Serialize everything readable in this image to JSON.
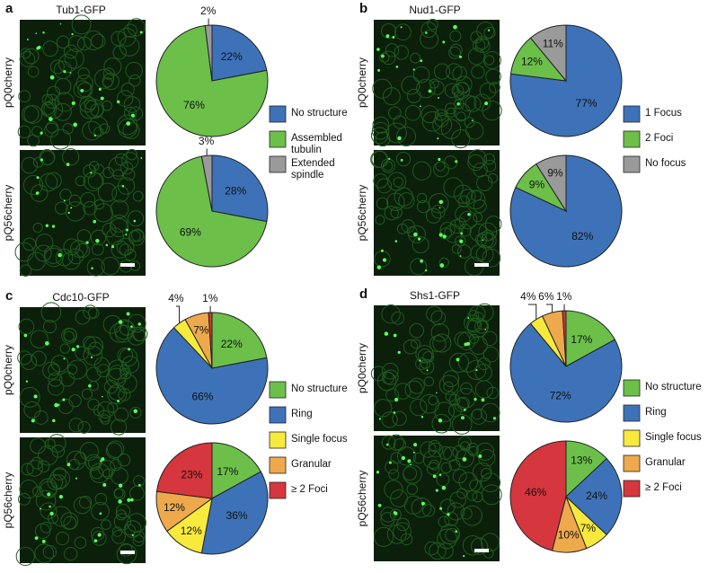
{
  "chart_data": [
    {
      "type": "pie",
      "panel": "a",
      "title": "Tub1-GFP",
      "categories": [
        "No structure",
        "Assembled tubulin",
        "Extended spindle"
      ],
      "colors": [
        "#3d72b8",
        "#6cc04a",
        "#9a9a9a"
      ],
      "series": [
        {
          "name": "pQ0cherry",
          "values": [
            22,
            76,
            2
          ],
          "value_labels": [
            "22%",
            "76%",
            "2%"
          ]
        },
        {
          "name": "pQ56cherry",
          "values": [
            28,
            69,
            3
          ],
          "value_labels": [
            "28%",
            "69%",
            "3%"
          ]
        }
      ]
    },
    {
      "type": "pie",
      "panel": "b",
      "title": "Nud1-GFP",
      "categories": [
        "1 Focus",
        "2 Foci",
        "No focus"
      ],
      "colors": [
        "#3d72b8",
        "#6cc04a",
        "#9a9a9a"
      ],
      "series": [
        {
          "name": "pQ0cherry",
          "values": [
            77,
            12,
            11
          ],
          "value_labels": [
            "77%",
            "12%",
            "11%"
          ]
        },
        {
          "name": "pQ56cherry",
          "values": [
            82,
            9,
            9
          ],
          "value_labels": [
            "82%",
            "9%",
            "9%"
          ]
        }
      ]
    },
    {
      "type": "pie",
      "panel": "c",
      "title": "Cdc10-GFP",
      "categories": [
        "No structure",
        "Ring",
        "Single focus",
        "Granular",
        "≥ 2 Foci"
      ],
      "colors": [
        "#6cc04a",
        "#3d72b8",
        "#f7ea3c",
        "#eda94c",
        "#d6363d"
      ],
      "series": [
        {
          "name": "pQ0cherry",
          "values": [
            22,
            66,
            4,
            7,
            1
          ],
          "value_labels": [
            "22%",
            "66%",
            "4%",
            "7%",
            "1%"
          ]
        },
        {
          "name": "pQ56cherry",
          "values": [
            17,
            36,
            12,
            12,
            23
          ],
          "value_labels": [
            "17%",
            "36%",
            "12%",
            "12%",
            "23%"
          ]
        }
      ]
    },
    {
      "type": "pie",
      "panel": "d",
      "title": "Shs1-GFP",
      "categories": [
        "No structure",
        "Ring",
        "Single focus",
        "Granular",
        "≥ 2 Foci"
      ],
      "colors": [
        "#6cc04a",
        "#3d72b8",
        "#f7ea3c",
        "#eda94c",
        "#d6363d"
      ],
      "series": [
        {
          "name": "pQ0cherry",
          "values": [
            17,
            72,
            4,
            6,
            1
          ],
          "value_labels": [
            "17%",
            "72%",
            "4%",
            "6%",
            "1%"
          ]
        },
        {
          "name": "pQ56cherry",
          "values": [
            13,
            24,
            7,
            10,
            46
          ],
          "value_labels": [
            "13%",
            "24%",
            "7%",
            "10%",
            "46%"
          ]
        }
      ]
    }
  ]
}
